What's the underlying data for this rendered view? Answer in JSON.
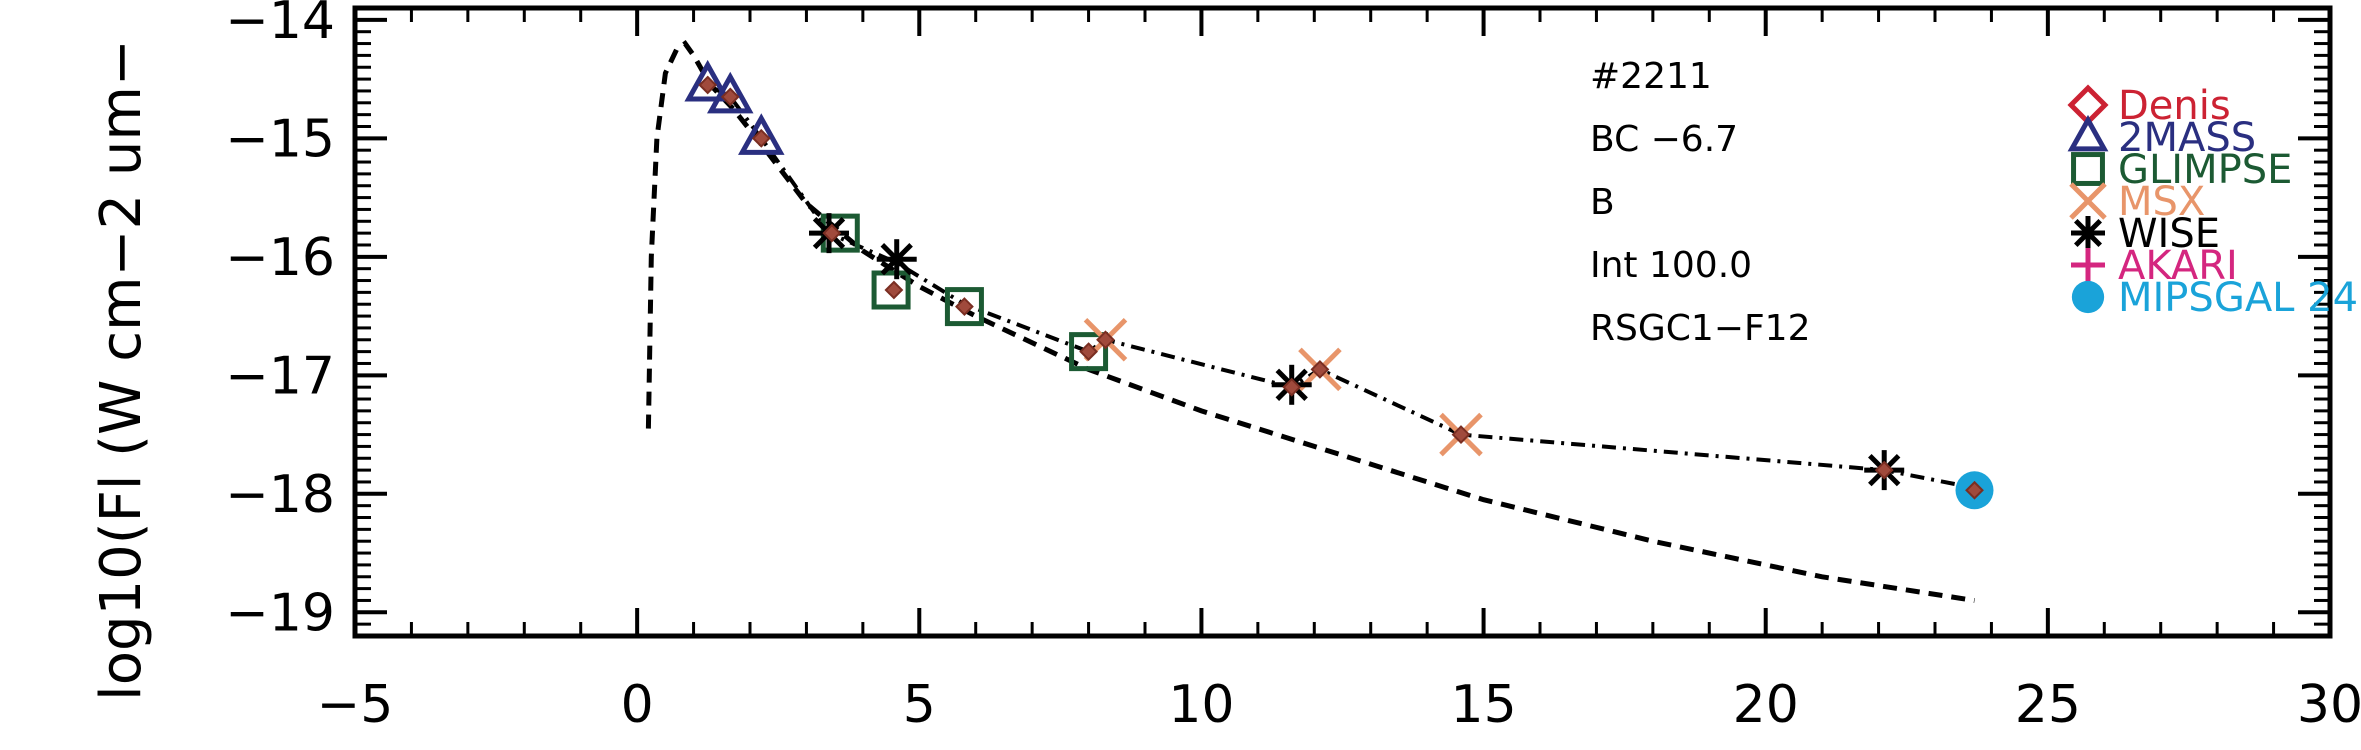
{
  "chart_data": {
    "type": "scatter",
    "title": "",
    "xlabel": "",
    "ylabel": "log10(Fl (W cm−2 um−",
    "xlim": [
      -5,
      30
    ],
    "ylim": [
      -19.2,
      -13.9
    ],
    "x_ticks": [
      -5,
      0,
      5,
      10,
      15,
      20,
      25,
      30
    ],
    "x_tick_labels": [
      "−5",
      "0",
      "5",
      "10",
      "15",
      "20",
      "25",
      "30"
    ],
    "y_ticks": [
      -19,
      -18,
      -17,
      -16,
      -15,
      -14
    ],
    "y_tick_labels": [
      "−19",
      "−18",
      "−17",
      "−16",
      "−15",
      "−14"
    ],
    "annotations": [
      "#2211",
      "BC −6.7",
      "B",
      "Int 100.0",
      "RSGC1−F12"
    ],
    "legend": [
      {
        "name": "Denis",
        "marker": "diamond",
        "color": "#cc2233"
      },
      {
        "name": "2MASS",
        "marker": "triangle",
        "color": "#2a2f80"
      },
      {
        "name": "GLIMPSE",
        "marker": "square",
        "color": "#1c5a33"
      },
      {
        "name": "MSX",
        "marker": "x",
        "color": "#e8956a"
      },
      {
        "name": "WISE",
        "marker": "asterisk",
        "color": "#000000"
      },
      {
        "name": "AKARI",
        "marker": "plus",
        "color": "#d4267f"
      },
      {
        "name": "MIPSGAL 24",
        "marker": "circle",
        "color": "#1aa3d9"
      }
    ],
    "model_curve": {
      "name": "model (dashed)",
      "x": [
        0.2,
        0.25,
        0.35,
        0.5,
        0.7,
        0.85,
        1.0,
        1.3,
        1.7,
        2.2,
        3.0,
        4.0,
        5.0,
        6.0,
        8.0,
        10.0,
        12.0,
        15.0,
        18.0,
        21.0,
        23.7
      ],
      "y": [
        -17.45,
        -16.0,
        -15.0,
        -14.45,
        -14.25,
        -14.2,
        -14.3,
        -14.55,
        -14.75,
        -15.05,
        -15.55,
        -15.95,
        -16.25,
        -16.5,
        -16.95,
        -17.3,
        -17.6,
        -18.05,
        -18.4,
        -18.7,
        -18.9
      ]
    },
    "fit_curve": {
      "name": "observed (dash-dot)",
      "x": [
        1.25,
        1.65,
        2.2,
        3.4,
        4.6,
        5.8,
        8.0,
        8.3,
        11.6,
        12.1,
        14.6,
        22.1,
        23.7
      ],
      "y": [
        -14.55,
        -14.65,
        -15.0,
        -15.8,
        -16.05,
        -16.4,
        -16.8,
        -16.7,
        -17.1,
        -16.95,
        -17.5,
        -17.8,
        -17.95
      ]
    },
    "series": [
      {
        "name": "Denis",
        "x": [],
        "y": []
      },
      {
        "name": "2MASS",
        "x": [
          1.25,
          1.65,
          2.2
        ],
        "y": [
          -14.55,
          -14.65,
          -15.0
        ]
      },
      {
        "name": "GLIMPSE",
        "x": [
          3.6,
          4.5,
          5.8,
          8.0
        ],
        "y": [
          -15.8,
          -16.28,
          -16.42,
          -16.8
        ]
      },
      {
        "name": "MSX",
        "x": [
          8.3,
          12.1,
          14.6
        ],
        "y": [
          -16.7,
          -16.95,
          -17.5
        ]
      },
      {
        "name": "WISE",
        "x": [
          3.4,
          4.6,
          11.6,
          22.1
        ],
        "y": [
          -15.8,
          -16.02,
          -17.08,
          -17.8
        ]
      },
      {
        "name": "AKARI",
        "x": [],
        "y": []
      },
      {
        "name": "MIPSGAL 24",
        "x": [
          23.7
        ],
        "y": [
          -17.97
        ]
      }
    ],
    "sed_points": {
      "name": "SED data",
      "x": [
        1.25,
        1.65,
        2.2,
        3.45,
        4.55,
        5.8,
        8.0,
        8.3,
        11.6,
        12.1,
        14.6,
        22.1,
        23.7
      ],
      "y": [
        -14.55,
        -14.65,
        -15.0,
        -15.8,
        -16.28,
        -16.42,
        -16.8,
        -16.7,
        -17.1,
        -16.95,
        -17.5,
        -17.8,
        -17.97
      ]
    }
  }
}
